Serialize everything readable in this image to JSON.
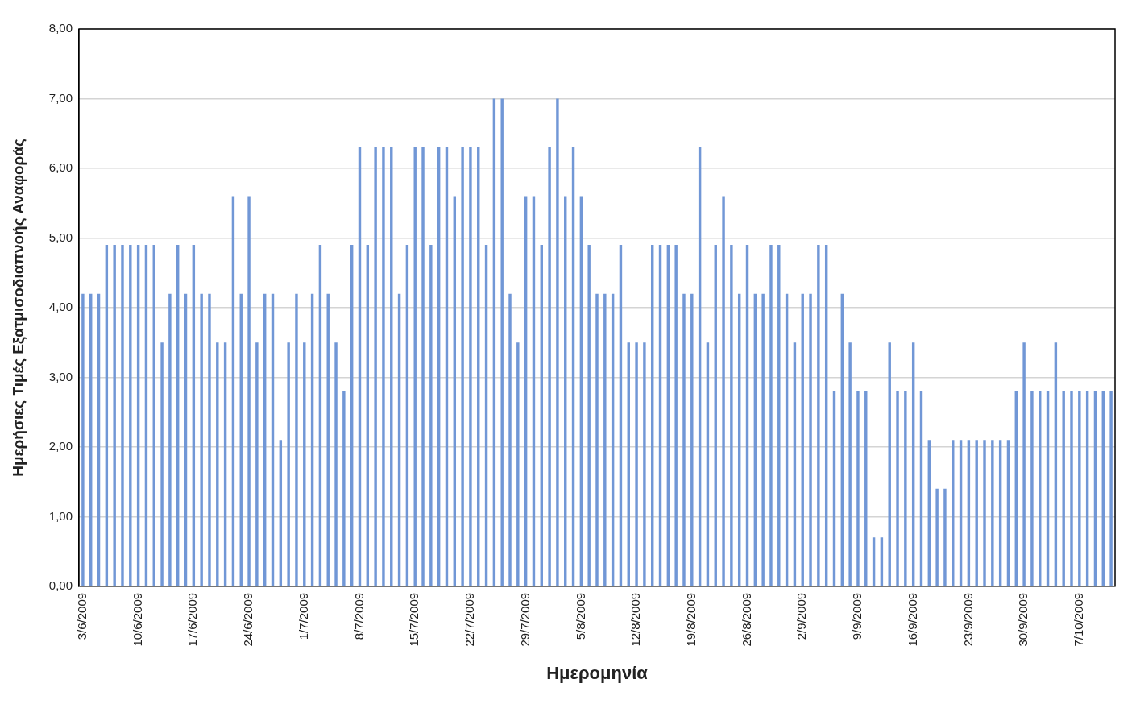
{
  "chart_data": {
    "type": "bar",
    "xlabel": "Ημερομηνία",
    "ylabel": "Ημερήσιες Τιμές Εξατμισοδιαπνοής Αναφοράς",
    "categories": [
      "3/6/2009",
      null,
      null,
      null,
      null,
      null,
      null,
      "10/6/2009",
      null,
      null,
      null,
      null,
      null,
      null,
      "17/6/2009",
      null,
      null,
      null,
      null,
      null,
      null,
      "24/6/2009",
      null,
      null,
      null,
      null,
      null,
      null,
      "1/7/2009",
      null,
      null,
      null,
      null,
      null,
      null,
      "8/7/2009",
      null,
      null,
      null,
      null,
      null,
      null,
      "15/7/2009",
      null,
      null,
      null,
      null,
      null,
      null,
      "22/7/2009",
      null,
      null,
      null,
      null,
      null,
      null,
      "29/7/2009",
      null,
      null,
      null,
      null,
      null,
      null,
      "5/8/2009",
      null,
      null,
      null,
      null,
      null,
      null,
      "12/8/2009",
      null,
      null,
      null,
      null,
      null,
      null,
      "19/8/2009",
      null,
      null,
      null,
      null,
      null,
      null,
      "26/8/2009",
      null,
      null,
      null,
      null,
      null,
      null,
      "2/9/2009",
      null,
      null,
      null,
      null,
      null,
      null,
      "9/9/2009",
      null,
      null,
      null,
      null,
      null,
      null,
      "16/9/2009",
      null,
      null,
      null,
      null,
      null,
      null,
      "23/9/2009",
      null,
      null,
      null,
      null,
      null,
      null,
      "30/9/2009",
      null,
      null,
      null,
      null,
      null,
      null,
      "7/10/2009",
      null,
      null,
      null,
      null
    ],
    "values": [
      4.2,
      4.2,
      4.2,
      4.9,
      4.9,
      4.9,
      4.9,
      4.9,
      4.9,
      4.9,
      3.5,
      4.2,
      4.9,
      4.2,
      4.9,
      4.2,
      4.2,
      3.5,
      3.5,
      5.6,
      4.2,
      5.6,
      3.5,
      4.2,
      4.2,
      2.1,
      3.5,
      4.2,
      3.5,
      4.2,
      4.9,
      4.2,
      3.5,
      2.8,
      4.9,
      6.3,
      4.9,
      6.3,
      6.3,
      6.3,
      4.2,
      4.9,
      6.3,
      6.3,
      4.9,
      6.3,
      6.3,
      5.6,
      6.3,
      6.3,
      6.3,
      4.9,
      7.0,
      7.0,
      4.2,
      3.5,
      5.6,
      5.6,
      4.9,
      6.3,
      7.0,
      5.6,
      6.3,
      5.6,
      4.9,
      4.2,
      4.2,
      4.2,
      4.9,
      3.5,
      3.5,
      3.5,
      4.9,
      4.9,
      4.9,
      4.9,
      4.2,
      4.2,
      6.3,
      3.5,
      4.9,
      5.6,
      4.9,
      4.2,
      4.9,
      4.2,
      4.2,
      4.9,
      4.9,
      4.2,
      3.5,
      4.2,
      4.2,
      4.9,
      4.9,
      2.8,
      4.2,
      3.5,
      2.8,
      2.8,
      0.7,
      0.7,
      3.5,
      2.8,
      2.8,
      3.5,
      2.8,
      2.1,
      1.4,
      1.4,
      2.1,
      2.1,
      2.1,
      2.1,
      2.1,
      2.1,
      2.1,
      2.1,
      2.8,
      3.5,
      2.8,
      2.8,
      2.8,
      3.5,
      2.8,
      2.8,
      2.8,
      2.8,
      2.8,
      2.8,
      2.8
    ],
    "color": "#7197d6",
    "ylim": [
      0,
      8
    ],
    "yticks": [
      {
        "value": 0,
        "label": "0,00"
      },
      {
        "value": 1,
        "label": "1,00"
      },
      {
        "value": 2,
        "label": "2,00"
      },
      {
        "value": 3,
        "label": "3,00"
      },
      {
        "value": 4,
        "label": "4,00"
      },
      {
        "value": 5,
        "label": "5,00"
      },
      {
        "value": 6,
        "label": "6,00"
      },
      {
        "value": 7,
        "label": "7,00"
      },
      {
        "value": 8,
        "label": "8,00"
      }
    ],
    "grid": "y"
  }
}
